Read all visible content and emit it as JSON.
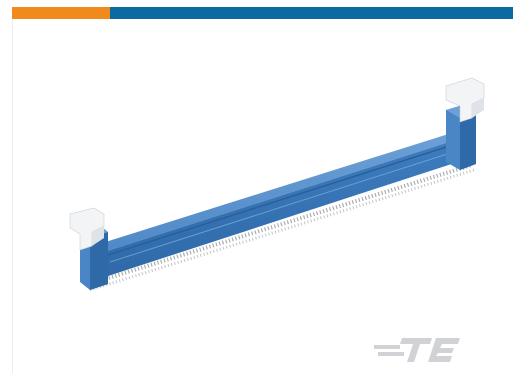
{
  "header": {
    "accent_color": "#f08a1c",
    "brand_color": "#0a6aa1"
  },
  "product": {
    "icon": "dimm-socket-connector-icon",
    "body_color": "#3d7dc0",
    "latch_color": "#e9ecef"
  },
  "brand": {
    "icon": "te-connectivity-logo-icon",
    "text": "TE",
    "color": "#d0d2d5"
  }
}
